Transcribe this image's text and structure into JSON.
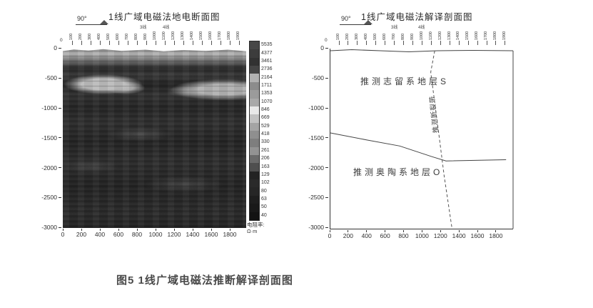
{
  "caption": "图5 1线广域电磁法推断解译剖面图",
  "left_panel": {
    "title": "1线广域电磁法地电断面图",
    "azimuth_label": "90°",
    "line_label_3": "3线",
    "line_label_4": "4线",
    "station_zero": "0",
    "stations": [
      "100",
      "200",
      "300",
      "400",
      "500",
      "600",
      "700",
      "800",
      "900",
      "1000",
      "1100",
      "1200",
      "1300",
      "1400",
      "1500",
      "1600",
      "1700",
      "1800",
      "1900"
    ],
    "y_ticks": [
      "0",
      "-500",
      "-1000",
      "-1500",
      "-2000",
      "-2500",
      "-3000"
    ],
    "x_ticks": [
      "0",
      "200",
      "400",
      "600",
      "800",
      "1000",
      "1200",
      "1400",
      "1600",
      "1800"
    ],
    "colorbar": {
      "unit_label": "电阻率:",
      "unit": "Ω·m",
      "segments": [
        {
          "value": "5535",
          "color": "#474747"
        },
        {
          "value": "4377",
          "color": "#3c3c3c"
        },
        {
          "value": "3461",
          "color": "#323232"
        },
        {
          "value": "2736",
          "color": "#454545"
        },
        {
          "value": "2164",
          "color": "#b2b2b2"
        },
        {
          "value": "1711",
          "color": "#8c8c8c"
        },
        {
          "value": "1353",
          "color": "#9b9b9b"
        },
        {
          "value": "1070",
          "color": "#a9a9a9"
        },
        {
          "value": "846",
          "color": "#e9e9e9"
        },
        {
          "value": "669",
          "color": "#c2c2c2"
        },
        {
          "value": "529",
          "color": "#a4a4a4"
        },
        {
          "value": "418",
          "color": "#8f8f8f"
        },
        {
          "value": "330",
          "color": "#7e7e7e"
        },
        {
          "value": "261",
          "color": "#939393"
        },
        {
          "value": "206",
          "color": "#6b6b6b"
        },
        {
          "value": "163",
          "color": "#4f4f4f"
        },
        {
          "value": "129",
          "color": "#232323"
        },
        {
          "value": "102",
          "color": "#2a2a2a"
        },
        {
          "value": "80",
          "color": "#262626"
        },
        {
          "value": "63",
          "color": "#1e1e1e"
        },
        {
          "value": "50",
          "color": "#191919"
        },
        {
          "value": "40",
          "color": "#131313"
        }
      ]
    }
  },
  "right_panel": {
    "title": "1线广域电磁法解译剖面图",
    "azimuth_label": "90°",
    "line_label_3": "3线",
    "line_label_4": "4线",
    "station_zero": "0",
    "stations": [
      "100",
      "200",
      "300",
      "400",
      "500",
      "600",
      "700",
      "800",
      "900",
      "1000",
      "1100",
      "1200",
      "1300",
      "1400",
      "1500",
      "1600",
      "1700",
      "1800",
      "1900"
    ],
    "y_ticks": [
      "0",
      "-500",
      "-1000",
      "-1500",
      "-2000",
      "-2500",
      "-3000"
    ],
    "x_ticks": [
      "0",
      "200",
      "400",
      "600",
      "800",
      "1000",
      "1200",
      "1400",
      "1600",
      "1800"
    ],
    "upper_layer_label": "推测志留系地层S",
    "lower_layer_label": "推测奥陶系地层O",
    "fault_label": "推测断裂带"
  },
  "chart_data": [
    {
      "type": "heatmap",
      "title": "1线广域电磁法地电断面图",
      "xlabel": "",
      "ylabel": "",
      "xlim": [
        0,
        1980
      ],
      "ylim": [
        -3000,
        0
      ],
      "x_ticks": [
        0,
        200,
        400,
        600,
        800,
        1000,
        1200,
        1400,
        1600,
        1800
      ],
      "y_ticks": [
        0,
        -500,
        -1000,
        -1500,
        -2000,
        -2500,
        -3000
      ],
      "colorbar_values": [
        5535,
        4377,
        3461,
        2736,
        2164,
        1711,
        1353,
        1070,
        846,
        669,
        529,
        418,
        330,
        261,
        206,
        163,
        129,
        102,
        80,
        63,
        50,
        40
      ],
      "colorbar_unit": "Ω·m",
      "legend_position": "right",
      "notes": "灰度电阻率断面：近地表高亮薄层；-400~-700m在桩号150-400m与1500-1900m处有两个浅色高阻团块；深部整体为暗色低阻背景"
    },
    {
      "type": "line",
      "title": "1线广域电磁法解译剖面图",
      "xlim": [
        0,
        1980
      ],
      "ylim": [
        -3000,
        0
      ],
      "x_ticks": [
        0,
        200,
        400,
        600,
        800,
        1000,
        1200,
        1400,
        1600,
        1800
      ],
      "y_ticks": [
        0,
        -500,
        -1000,
        -1500,
        -2000,
        -2500,
        -3000
      ],
      "series": [
        {
          "name": "志留系/奥陶系地层界线",
          "style": "solid",
          "x": [
            0,
            400,
            750,
            1100,
            1250,
            1900
          ],
          "y": [
            -1380,
            -1500,
            -1600,
            -1780,
            -1850,
            -1830
          ]
        },
        {
          "name": "推测断裂带",
          "style": "dashed",
          "x": [
            1128,
            1085,
            1175,
            1230,
            1314
          ],
          "y": [
            0,
            -360,
            -1430,
            -2100,
            -2976
          ]
        }
      ],
      "annotations": [
        "推测志留系地层S",
        "推测奥陶系地层O",
        "推测断裂带"
      ]
    }
  ]
}
